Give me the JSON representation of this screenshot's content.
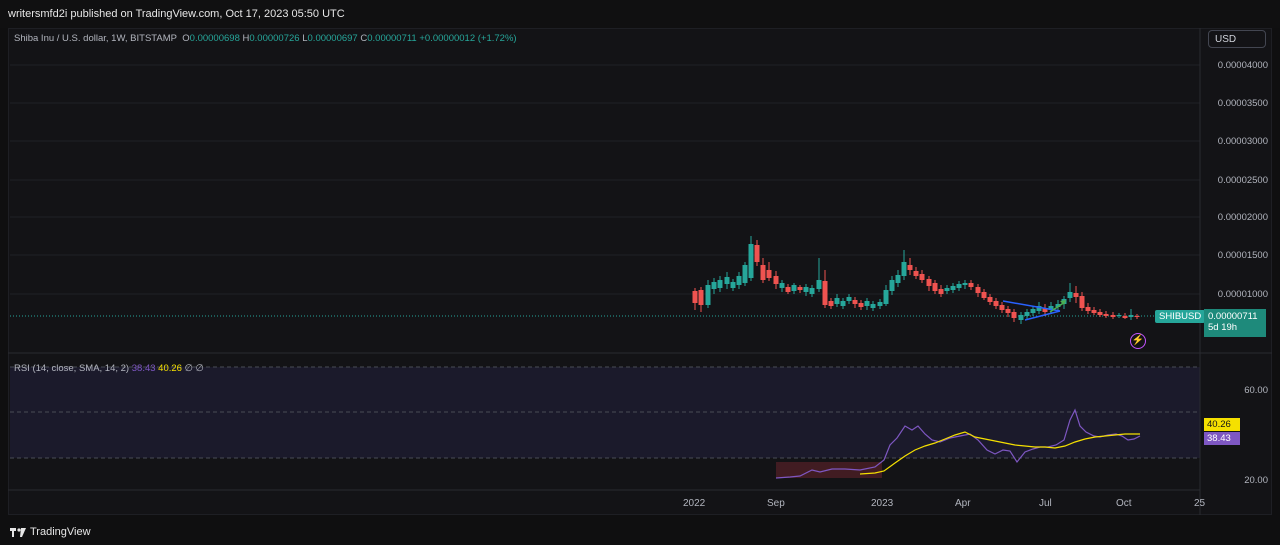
{
  "header": {
    "published_text": "writersmfd2i published on TradingView.com, Oct 17, 2023 05:50 UTC"
  },
  "legend": {
    "symbol_text": "Shiba Inu / U.S. dollar, 1W, BITSTAMP",
    "open_key": "O",
    "open": "0.00000698",
    "high_key": "H",
    "high": "0.00000726",
    "low_key": "L",
    "low": "0.00000697",
    "close_key": "C",
    "close": "0.00000711",
    "change": "+0.00000012 (+1.72%)"
  },
  "scale": {
    "currency_button": "USD"
  },
  "price_axis": [
    "0.00004000",
    "0.00003500",
    "0.00003000",
    "0.00002500",
    "0.00002000",
    "0.00001500",
    "0.00001000"
  ],
  "last_price": {
    "symbol": "SHIBUSD",
    "value": "0.00000711",
    "countdown": "5d 19h"
  },
  "rsi": {
    "legend_label": "RSI (14, close, SMA, 14, 2)",
    "rsi_value": "38.43",
    "sma_value": "40.26",
    "extra1": "∅",
    "extra2": "∅",
    "axis": [
      "60.00",
      "20.00"
    ],
    "color_rsi": "#7e57c2",
    "color_sma": "#f5e000"
  },
  "time_axis": [
    "2022",
    "Sep",
    "2023",
    "Apr",
    "Jul",
    "Oct",
    "25"
  ],
  "footer": {
    "brand": "TradingView"
  },
  "colors": {
    "up": "#26a69a",
    "down": "#ef5350"
  }
}
